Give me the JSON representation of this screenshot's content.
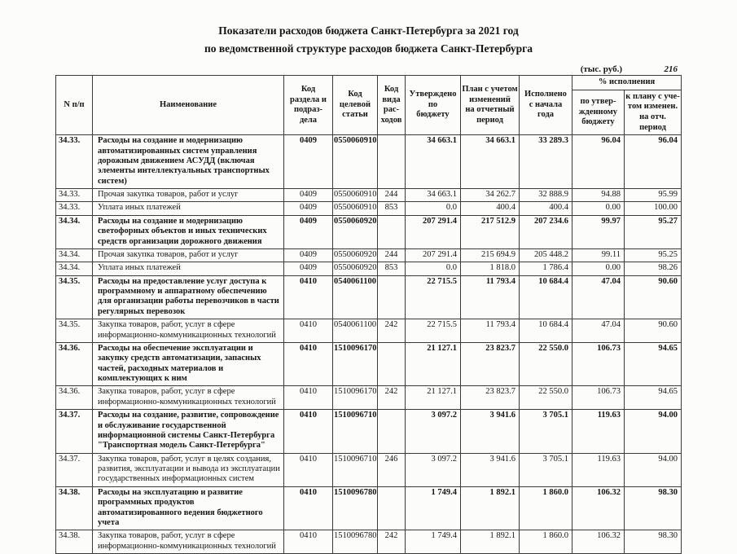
{
  "document": {
    "title_line1": "Показатели расходов бюджета Санкт-Петербурга за 2021 год",
    "title_line2": "по ведомственной структуре расходов бюджета Санкт-Петербурга",
    "units_label": "(тыс. руб.)",
    "page_number": "216"
  },
  "table": {
    "headers": {
      "num": "N п/п",
      "name": "Наименование",
      "section_code": "Код\nраздела и\nподраз-\nдела",
      "target_code": "Код\nцелевой\nстатьи",
      "type_code": "Код\nвида\nрас-\nходов",
      "approved": "Утверждено\nпо\nбюджету",
      "plan": "План с учетом\nизменений\nна отчетный\nпериод",
      "executed": "Исполнено\nс начала\nгода",
      "execution_pct": "% исполнения",
      "pct_budget": "по утвер-\nжденному\nбюджету",
      "pct_plan": "к плану с уче-\nтом изменен.\nна отч. период"
    },
    "rows": [
      {
        "num": "34.33.",
        "name": "Расходы на создание и модернизацию автоматизированных систем управления дорожным движением АСУДД (включая элементы интеллектуальных транспортных систем)",
        "rz": "0409",
        "csr": "0550060910",
        "vr": "",
        "approved": "34 663.1",
        "plan": "34 663.1",
        "executed": "33 289.3",
        "pct_budget": "96.04",
        "pct_plan": "96.04",
        "bold": true
      },
      {
        "num": "34.33.",
        "name": "Прочая закупка товаров, работ и услуг",
        "rz": "0409",
        "csr": "0550060910",
        "vr": "244",
        "approved": "34 663.1",
        "plan": "34 262.7",
        "executed": "32 888.9",
        "pct_budget": "94.88",
        "pct_plan": "95.99",
        "bold": false
      },
      {
        "num": "34.33.",
        "name": "Уплата иных платежей",
        "rz": "0409",
        "csr": "0550060910",
        "vr": "853",
        "approved": "0.0",
        "plan": "400.4",
        "executed": "400.4",
        "pct_budget": "0.00",
        "pct_plan": "100.00",
        "bold": false
      },
      {
        "num": "34.34.",
        "name": "Расходы на создание и модернизацию светофорных объектов и иных технических средств организации дорожного движения",
        "rz": "0409",
        "csr": "0550060920",
        "vr": "",
        "approved": "207 291.4",
        "plan": "217 512.9",
        "executed": "207 234.6",
        "pct_budget": "99.97",
        "pct_plan": "95.27",
        "bold": true
      },
      {
        "num": "34.34.",
        "name": "Прочая закупка товаров, работ и услуг",
        "rz": "0409",
        "csr": "0550060920",
        "vr": "244",
        "approved": "207 291.4",
        "plan": "215 694.9",
        "executed": "205 448.2",
        "pct_budget": "99.11",
        "pct_plan": "95.25",
        "bold": false
      },
      {
        "num": "34.34.",
        "name": "Уплата иных платежей",
        "rz": "0409",
        "csr": "0550060920",
        "vr": "853",
        "approved": "0.0",
        "plan": "1 818.0",
        "executed": "1 786.4",
        "pct_budget": "0.00",
        "pct_plan": "98.26",
        "bold": false
      },
      {
        "num": "34.35.",
        "name": "Расходы на предоставление услуг доступа к программному и аппаратному обеспечению для организации работы перевозчиков в части регулярных перевозок",
        "rz": "0410",
        "csr": "0540061100",
        "vr": "",
        "approved": "22 715.5",
        "plan": "11 793.4",
        "executed": "10 684.4",
        "pct_budget": "47.04",
        "pct_plan": "90.60",
        "bold": true
      },
      {
        "num": "34.35.",
        "name": "Закупка товаров, работ, услуг в сфере информационно-коммуникационных технологий",
        "rz": "0410",
        "csr": "0540061100",
        "vr": "242",
        "approved": "22 715.5",
        "plan": "11 793.4",
        "executed": "10 684.4",
        "pct_budget": "47.04",
        "pct_plan": "90.60",
        "bold": false
      },
      {
        "num": "34.36.",
        "name": "Расходы на  обеспечение эксплуатации и закупку средств автоматизации, запасных частей, расходных материалов и комплектующих к ним",
        "rz": "0410",
        "csr": "1510096170",
        "vr": "",
        "approved": "21 127.1",
        "plan": "23 823.7",
        "executed": "22 550.0",
        "pct_budget": "106.73",
        "pct_plan": "94.65",
        "bold": true
      },
      {
        "num": "34.36.",
        "name": "Закупка товаров, работ, услуг в сфере информационно-коммуникационных технологий",
        "rz": "0410",
        "csr": "1510096170",
        "vr": "242",
        "approved": "21 127.1",
        "plan": "23 823.7",
        "executed": "22 550.0",
        "pct_budget": "106.73",
        "pct_plan": "94.65",
        "bold": false
      },
      {
        "num": "34.37.",
        "name": "Расходы на создание, развитие, сопровождение и обслуживание государственной информационной системы Санкт-Петербурга \"Транспортная модель Санкт-Петербурга\"",
        "rz": "0410",
        "csr": "1510096710",
        "vr": "",
        "approved": "3 097.2",
        "plan": "3 941.6",
        "executed": "3 705.1",
        "pct_budget": "119.63",
        "pct_plan": "94.00",
        "bold": true
      },
      {
        "num": "34.37.",
        "name": "Закупка товаров, работ, услуг в целях создания, развития, эксплуатации и вывода из эксплуатации государственных информационных систем",
        "rz": "0410",
        "csr": "1510096710",
        "vr": "246",
        "approved": "3 097.2",
        "plan": "3 941.6",
        "executed": "3 705.1",
        "pct_budget": "119.63",
        "pct_plan": "94.00",
        "bold": false
      },
      {
        "num": "34.38.",
        "name": "Расходы на эксплуатацию и развитие программных продуктов автоматизированного ведения бюджетного учета",
        "rz": "0410",
        "csr": "1510096780",
        "vr": "",
        "approved": "1 749.4",
        "plan": "1 892.1",
        "executed": "1 860.0",
        "pct_budget": "106.32",
        "pct_plan": "98.30",
        "bold": true
      },
      {
        "num": "34.38.",
        "name": "Закупка товаров, работ, услуг в сфере информационно-коммуникационных технологий",
        "rz": "0410",
        "csr": "1510096780",
        "vr": "242",
        "approved": "1 749.4",
        "plan": "1 892.1",
        "executed": "1 860.0",
        "pct_budget": "106.32",
        "pct_plan": "98.30",
        "bold": false
      }
    ]
  }
}
